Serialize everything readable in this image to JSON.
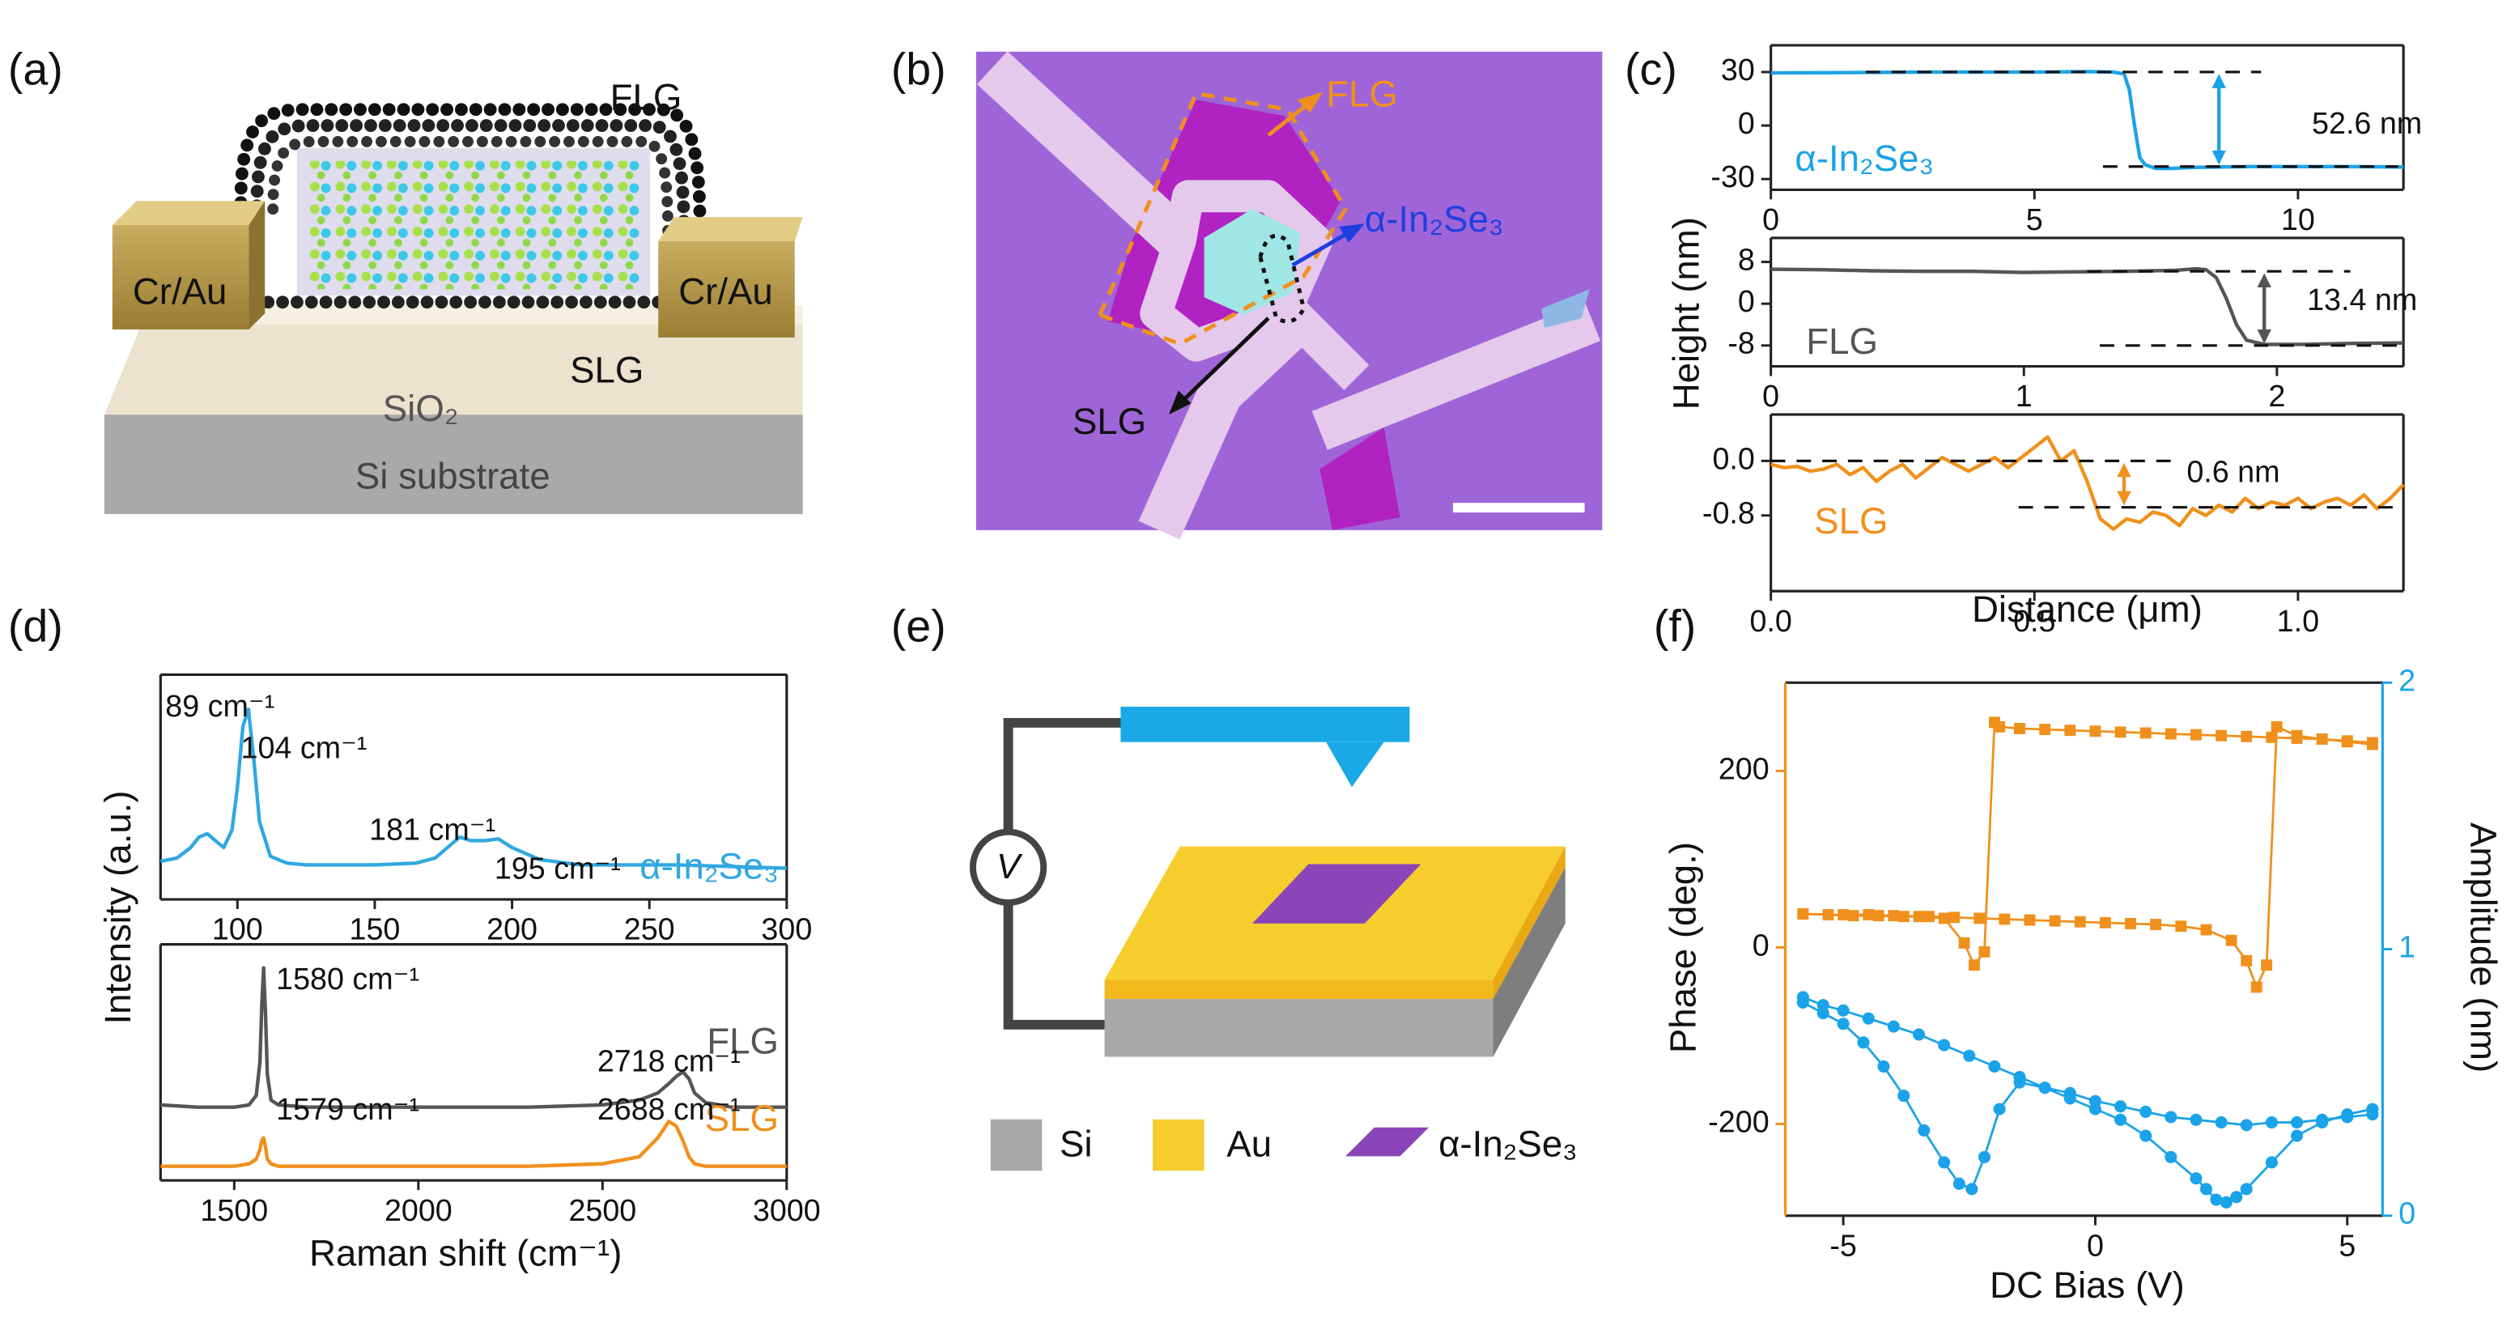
{
  "panel_labels": [
    "(a)",
    "(b)",
    "(c)",
    "(d)",
    "(e)",
    "(f)"
  ],
  "schematic_a": {
    "top_layer": "FLG",
    "left_contact": "Cr/Au",
    "right_contact": "Cr/Au",
    "bottom_layer": "SLG",
    "oxide": "SiO₂",
    "substrate": "Si substrate"
  },
  "micrograph_b": {
    "flg": "FLG",
    "flake": "α-In₂Se₃",
    "slg": "SLG"
  },
  "schematic_e": {
    "source": "V",
    "legend": [
      "Si",
      "Au",
      "α-In₂Se₃"
    ]
  },
  "chart_data": [
    {
      "type": "line",
      "series": [
        {
          "name": "α-In₂Se₃",
          "color": "#1aa3e8",
          "x": [
            0,
            1,
            2,
            3,
            4,
            5,
            6,
            6.5,
            6.7,
            6.8,
            6.9,
            7.0,
            7.1,
            7.3,
            7.6,
            8,
            9,
            10,
            11,
            12
          ],
          "values": [
            29.5,
            29.6,
            29.8,
            30,
            30,
            30,
            30.2,
            30,
            29,
            20,
            0,
            -18,
            -22,
            -24,
            -24,
            -23.5,
            -23,
            -23,
            -23,
            -23.2
          ]
        }
      ],
      "xlim": [
        0,
        12
      ],
      "ylim": [
        -36,
        45
      ],
      "xticks": [
        0,
        5,
        10
      ],
      "yticks": [
        -30,
        0,
        30
      ],
      "reference_lines": [
        {
          "value": 30,
          "from": 1.8,
          "to": 9.3
        },
        {
          "value": -23,
          "from": 6.3,
          "to": 11.9
        }
      ],
      "arrow_x": 8.5,
      "step_label": "52.6 nm"
    },
    {
      "type": "line",
      "series": [
        {
          "name": "FLG",
          "color": "#555555",
          "x": [
            0,
            0.2,
            0.4,
            0.6,
            0.8,
            1.0,
            1.2,
            1.4,
            1.6,
            1.68,
            1.72,
            1.76,
            1.8,
            1.84,
            1.88,
            1.95,
            2.1,
            2.3,
            2.5
          ],
          "values": [
            6.6,
            6.5,
            6.3,
            6.2,
            6.2,
            6.0,
            6.1,
            6.2,
            6.4,
            6.7,
            6.5,
            5,
            1,
            -4,
            -7,
            -7.8,
            -7.8,
            -7.6,
            -7.5
          ]
        }
      ],
      "xlim": [
        0,
        2.5
      ],
      "ylim": [
        -12,
        12.6
      ],
      "xticks": [
        0,
        1,
        2
      ],
      "yticks": [
        -8,
        0,
        8
      ],
      "reference_lines": [
        {
          "value": 6.2,
          "from": 1.25,
          "to": 2.29
        },
        {
          "value": -8,
          "from": 1.3,
          "to": 2.5
        }
      ],
      "arrow_x": 1.95,
      "step_label": "13.4 nm",
      "ylabel": "Height (nm)"
    },
    {
      "type": "line",
      "series": [
        {
          "name": "SLG",
          "color": "#f0901c",
          "x": [
            0,
            0.025,
            0.05,
            0.075,
            0.1,
            0.125,
            0.15,
            0.175,
            0.2,
            0.225,
            0.25,
            0.275,
            0.3,
            0.325,
            0.35,
            0.375,
            0.4,
            0.425,
            0.45,
            0.475,
            0.5,
            0.525,
            0.55,
            0.575,
            0.6,
            0.625,
            0.65,
            0.675,
            0.7,
            0.725,
            0.75,
            0.775,
            0.8,
            0.825,
            0.85,
            0.875,
            0.9,
            0.925,
            0.95,
            0.975,
            1.0,
            1.025,
            1.05,
            1.075,
            1.1,
            1.125,
            1.15,
            1.175,
            1.2
          ],
          "values": [
            -0.05,
            -0.1,
            -0.08,
            -0.15,
            -0.12,
            -0.05,
            -0.2,
            -0.1,
            -0.3,
            -0.15,
            -0.05,
            -0.25,
            -0.1,
            0.05,
            -0.05,
            -0.15,
            -0.05,
            0.05,
            -0.1,
            0.05,
            0.2,
            0.35,
            0.0,
            0.15,
            -0.3,
            -0.85,
            -1.0,
            -0.85,
            -0.9,
            -0.75,
            -0.8,
            -0.95,
            -0.7,
            -0.8,
            -0.65,
            -0.75,
            -0.55,
            -0.7,
            -0.6,
            -0.65,
            -0.55,
            -0.7,
            -0.6,
            -0.55,
            -0.65,
            -0.5,
            -0.7,
            -0.55,
            -0.35
          ]
        }
      ],
      "xlim": [
        0,
        1.2
      ],
      "ylim": [
        -1.91,
        0.68
      ],
      "xticks": [
        {
          "value": 0,
          "label": "0.0"
        },
        0.5,
        {
          "value": 1,
          "label": "1.0"
        }
      ],
      "yticks": [
        {
          "value": 0,
          "label": "0.0"
        },
        -0.8
      ],
      "reference_lines": [
        {
          "value": 0,
          "from": 0,
          "to": 0.76
        },
        {
          "value": -0.68,
          "from": 0.47,
          "to": 1.19
        }
      ],
      "arrow_x": 0.67,
      "step_label": "0.6 nm",
      "xlabel": "Distance (μm)"
    },
    {
      "type": "line",
      "series": [
        {
          "name": "α-In₂Se₃",
          "color": "#30a8e0",
          "x": [
            72,
            78,
            83,
            86,
            89,
            92,
            95,
            98,
            100,
            102,
            104,
            106,
            108,
            112,
            118,
            125,
            135,
            150,
            165,
            172,
            178,
            181,
            185,
            190,
            195,
            200,
            210,
            225,
            240,
            260,
            280,
            300
          ],
          "values": [
            0.12,
            0.14,
            0.2,
            0.26,
            0.28,
            0.24,
            0.2,
            0.3,
            0.55,
            0.9,
            1.0,
            0.7,
            0.35,
            0.15,
            0.11,
            0.1,
            0.1,
            0.1,
            0.11,
            0.14,
            0.22,
            0.26,
            0.24,
            0.24,
            0.25,
            0.2,
            0.13,
            0.1,
            0.1,
            0.1,
            0.09,
            0.08
          ]
        }
      ],
      "xlim": [
        72,
        300
      ],
      "ylim": [
        -0.1,
        1.2
      ],
      "xticks": [
        100,
        150,
        200,
        250,
        300
      ],
      "annotations": [
        "89 cm⁻¹",
        "104 cm⁻¹",
        "181 cm⁻¹",
        "195 cm⁻¹"
      ],
      "ylabel": "Intensity (a.u.)"
    },
    {
      "type": "line",
      "series": [
        {
          "name": "FLG",
          "color": "#555555",
          "x": [
            1300,
            1400,
            1500,
            1540,
            1560,
            1570,
            1575,
            1580,
            1585,
            1590,
            1600,
            1620,
            1700,
            1900,
            2100,
            2300,
            2500,
            2600,
            2650,
            2680,
            2700,
            2718,
            2735,
            2750,
            2780,
            2850,
            3000
          ],
          "values": [
            0.32,
            0.31,
            0.31,
            0.32,
            0.36,
            0.5,
            0.75,
            0.9,
            0.7,
            0.45,
            0.34,
            0.32,
            0.31,
            0.31,
            0.31,
            0.31,
            0.32,
            0.34,
            0.37,
            0.41,
            0.44,
            0.46,
            0.43,
            0.37,
            0.33,
            0.31,
            0.31
          ]
        },
        {
          "name": "SLG",
          "color": "#f0901c",
          "x": [
            1300,
            1400,
            1500,
            1540,
            1560,
            1570,
            1575,
            1580,
            1585,
            1590,
            1600,
            1620,
            1700,
            1900,
            2100,
            2300,
            2500,
            2600,
            2650,
            2680,
            2700,
            2718,
            2735,
            2750,
            2780,
            2850,
            3000
          ],
          "values": [
            0.06,
            0.06,
            0.06,
            0.07,
            0.09,
            0.13,
            0.17,
            0.18,
            0.14,
            0.09,
            0.07,
            0.06,
            0.06,
            0.06,
            0.06,
            0.06,
            0.07,
            0.1,
            0.18,
            0.25,
            0.23,
            0.17,
            0.1,
            0.07,
            0.06,
            0.06,
            0.06
          ]
        }
      ],
      "xlim": [
        1300,
        3000
      ],
      "ylim": [
        0,
        1
      ],
      "xticks": [
        1500,
        2000,
        2500,
        3000
      ],
      "annotations": [
        "1580 cm⁻¹",
        "2718 cm⁻¹",
        "1579 cm⁻¹",
        "2688 cm⁻¹"
      ],
      "xlabel": "Raman shift (cm⁻¹)"
    },
    {
      "type": "line",
      "series": [
        {
          "color": "#f0901c",
          "marker": "square",
          "x": [
            -5.8,
            -5.3,
            -4.8,
            -4.3,
            -3.8,
            -3.3,
            -2.8,
            -2.3,
            -1.8,
            -1.3,
            -0.8,
            -0.3,
            0.2,
            0.7,
            1.2,
            1.7,
            2.2,
            2.7,
            3.0,
            3.2,
            3.4,
            3.6,
            4.0,
            4.5,
            5.0,
            5.5
          ],
          "values": [
            38,
            37,
            36,
            36,
            35,
            35,
            34,
            33,
            32,
            31,
            30,
            29,
            28,
            27,
            26,
            24,
            20,
            8,
            -15,
            -45,
            -20,
            250,
            240,
            236,
            233,
            230
          ]
        },
        {
          "color": "#f0901c",
          "marker": "square",
          "x": [
            5.5,
            5.0,
            4.5,
            4.0,
            3.5,
            3.0,
            2.5,
            2.0,
            1.5,
            1.0,
            0.5,
            0,
            -0.5,
            -1.0,
            -1.5,
            -1.9,
            -2.0,
            -2.2,
            -2.4,
            -2.6,
            -3.0,
            -3.5,
            -4.0,
            -4.5,
            -5.0,
            -5.8
          ],
          "values": [
            232,
            234,
            236,
            237,
            238,
            239,
            240,
            241,
            242,
            243,
            244,
            245,
            246,
            247,
            248,
            250,
            255,
            -5,
            -20,
            5,
            33,
            35,
            36,
            37,
            37,
            38
          ]
        },
        {
          "color": "#1aa3e8",
          "marker": "circle",
          "axis": "y2",
          "x": [
            -5.8,
            -5.4,
            -5.0,
            -4.6,
            -4.2,
            -3.8,
            -3.4,
            -3.0,
            -2.7,
            -2.45,
            -2.2,
            -1.9,
            -1.5,
            -1.0,
            -0.5,
            0,
            0.5,
            1.0,
            1.5,
            2.0,
            2.5,
            3.0,
            3.5,
            4.0,
            4.5,
            5.0,
            5.5
          ],
          "values": [
            0.8,
            0.76,
            0.72,
            0.65,
            0.56,
            0.45,
            0.32,
            0.2,
            0.12,
            0.1,
            0.22,
            0.4,
            0.5,
            0.48,
            0.46,
            0.43,
            0.41,
            0.39,
            0.37,
            0.36,
            0.35,
            0.34,
            0.35,
            0.35,
            0.36,
            0.37,
            0.38
          ]
        },
        {
          "color": "#1aa3e8",
          "marker": "circle",
          "axis": "y2",
          "x": [
            5.5,
            5.0,
            4.5,
            4.0,
            3.5,
            3.0,
            2.8,
            2.6,
            2.4,
            2.2,
            2.0,
            1.5,
            1.0,
            0.5,
            0,
            -0.5,
            -1.0,
            -1.5,
            -2.0,
            -2.5,
            -3.0,
            -3.5,
            -4.0,
            -4.5,
            -5.0,
            -5.4,
            -5.8
          ],
          "values": [
            0.4,
            0.38,
            0.35,
            0.3,
            0.2,
            0.1,
            0.07,
            0.05,
            0.06,
            0.1,
            0.14,
            0.22,
            0.3,
            0.36,
            0.4,
            0.44,
            0.48,
            0.52,
            0.56,
            0.6,
            0.64,
            0.68,
            0.71,
            0.74,
            0.77,
            0.79,
            0.82
          ]
        }
      ],
      "xlim": [
        -6.15,
        5.7
      ],
      "ylim": [
        -304,
        300
      ],
      "y2lim": [
        0,
        2
      ],
      "xticks": [
        -5,
        0,
        5
      ],
      "yticks": [
        -200,
        0,
        200
      ],
      "y2ticks": [
        0,
        1,
        2
      ],
      "y_axis_color": "#f0901c",
      "y2_axis_color": "#1aa3e8",
      "ylabel": "Phase (deg.)",
      "y2label": "Amplitude (nm)",
      "xlabel": "DC Bias (V)"
    }
  ]
}
